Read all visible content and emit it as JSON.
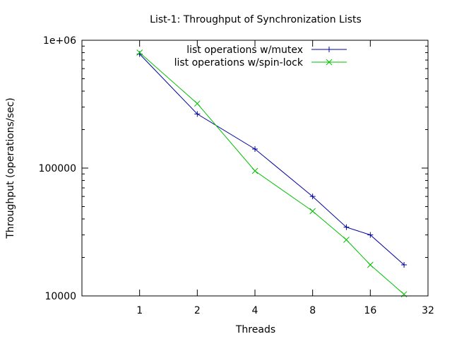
{
  "chart_data": {
    "type": "line",
    "title": "List-1: Throughput of Synchronization Lists",
    "xlabel": "Threads",
    "ylabel": "Throughput (operations/sec)",
    "x_scale": "log2",
    "y_scale": "log10",
    "xlim": [
      0.5,
      32
    ],
    "ylim": [
      10000,
      1000000
    ],
    "x_ticks": [
      {
        "value": 1,
        "label": "1"
      },
      {
        "value": 2,
        "label": "2"
      },
      {
        "value": 4,
        "label": "4"
      },
      {
        "value": 8,
        "label": "8"
      },
      {
        "value": 16,
        "label": "16"
      },
      {
        "value": 32,
        "label": "32"
      }
    ],
    "y_ticks": [
      {
        "value": 10000,
        "label": "10000"
      },
      {
        "value": 100000,
        "label": "100000"
      },
      {
        "value": 1000000,
        "label": "1e+06"
      }
    ],
    "legend_position": "top-right",
    "series": [
      {
        "name": "list operations w/mutex",
        "color": "#0000a0",
        "marker": "plus",
        "points": [
          [
            1,
            780000
          ],
          [
            2,
            265000
          ],
          [
            4,
            141000
          ],
          [
            8,
            60000
          ],
          [
            12,
            34500
          ],
          [
            16,
            30000
          ],
          [
            24,
            17500
          ]
        ]
      },
      {
        "name": "list operations w/spin-lock",
        "color": "#00c000",
        "marker": "cross",
        "points": [
          [
            1,
            800000
          ],
          [
            2,
            320000
          ],
          [
            4,
            95000
          ],
          [
            8,
            46000
          ],
          [
            12,
            27500
          ],
          [
            16,
            17500
          ],
          [
            24,
            10300
          ]
        ]
      }
    ]
  }
}
